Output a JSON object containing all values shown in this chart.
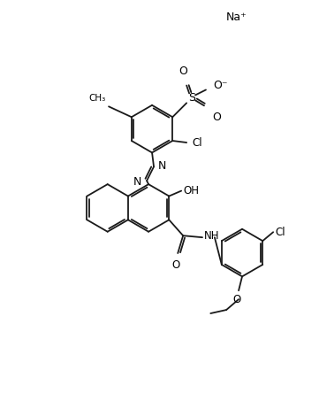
{
  "background_color": "#ffffff",
  "line_color": "#1a1a1a",
  "figsize": [
    3.61,
    4.53
  ],
  "dpi": 100,
  "na_label": "Na⁺",
  "o_minus": "O⁻",
  "cl_label": "Cl",
  "oh_label": "OH",
  "nh_label": "NH",
  "o_label": "O",
  "s_label": "S",
  "n_label": "N",
  "ch3_label": "CH₃"
}
